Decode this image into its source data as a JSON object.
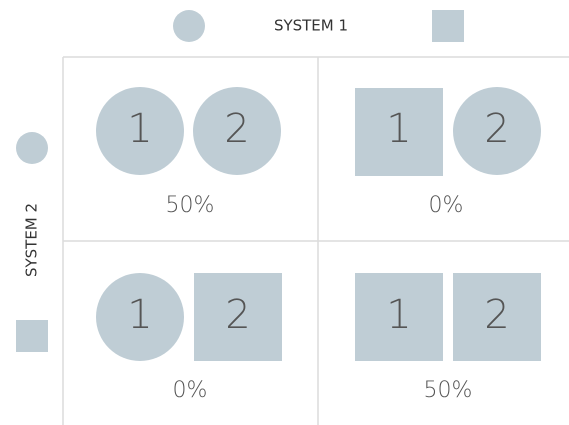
{
  "header": {
    "title": "SYSTEM 1"
  },
  "side": {
    "title": "SYSTEM 2"
  },
  "cells": [
    {
      "items": [
        "1",
        "2"
      ],
      "share": "50%"
    },
    {
      "items": [
        "1",
        "2"
      ],
      "share": "0%"
    },
    {
      "items": [
        "1",
        "2"
      ],
      "share": "0%"
    },
    {
      "items": [
        "1",
        "2"
      ],
      "share": "50%"
    }
  ]
}
